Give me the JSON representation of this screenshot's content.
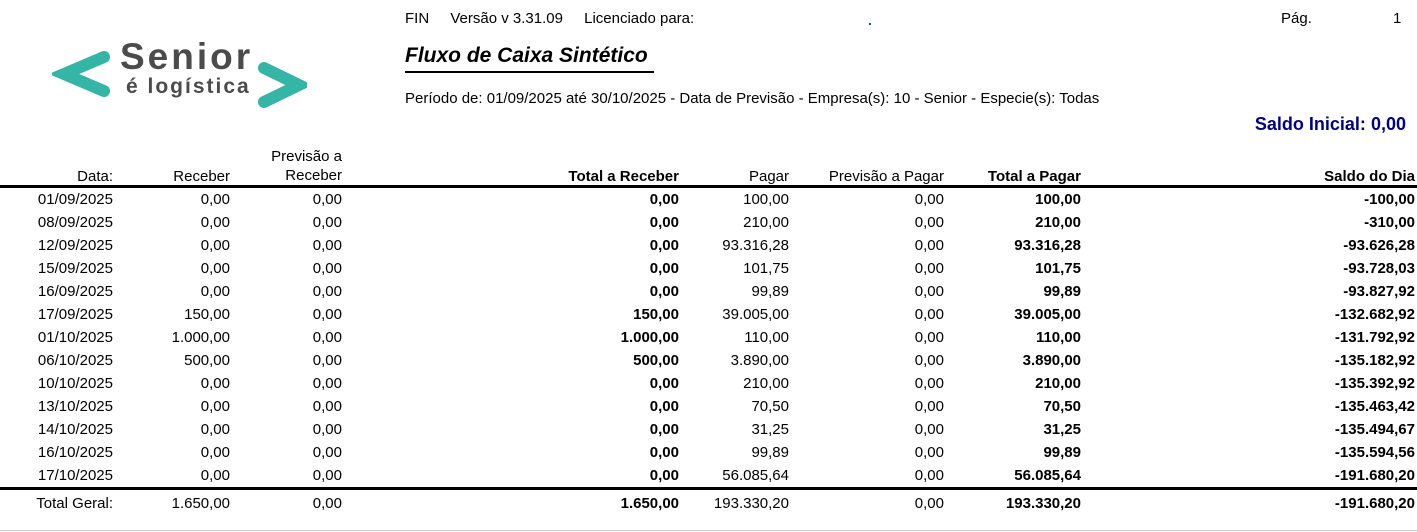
{
  "header": {
    "logo": {
      "brand": "Senior",
      "tagline": "é logística"
    },
    "app_line": {
      "product": "FIN",
      "version": "Versão v 3.31.09",
      "licensed_label": "Licenciado para:",
      "licensed_value": ".",
      "page_label": "Pág.",
      "page_number": "1"
    },
    "title": "Fluxo de Caixa Sintético",
    "period_line": "Período de: 01/09/2025 até 30/10/2025 - Data de Previsão - Empresa(s): 10 - Senior - Especie(s): Todas",
    "saldo_inicial": {
      "label": "Saldo Inicial:",
      "value": "0,00"
    }
  },
  "colors": {
    "accent_navy": "#00008B",
    "logo_teal": "#35b5a5",
    "logo_gray": "#4b4b4b"
  },
  "table": {
    "col_keys": [
      "data",
      "receber",
      "previsao-a-receber",
      "total-a-receber",
      "pagar",
      "previsao-a-pagar",
      "total-a-pagar",
      "saldo-do-dia"
    ],
    "headers": {
      "data": "Data:",
      "receber": "Receber",
      "previsao_receber_line1": "Previsão a",
      "previsao_receber_line2": "Receber",
      "total_receber": "Total a Receber",
      "pagar": "Pagar",
      "previsao_pagar": "Previsão a Pagar",
      "total_pagar": "Total a Pagar",
      "saldo_dia": "Saldo do Dia"
    },
    "rows": [
      [
        "01/09/2025",
        "0,00",
        "0,00",
        "0,00",
        "100,00",
        "0,00",
        "100,00",
        "-100,00"
      ],
      [
        "08/09/2025",
        "0,00",
        "0,00",
        "0,00",
        "210,00",
        "0,00",
        "210,00",
        "-310,00"
      ],
      [
        "12/09/2025",
        "0,00",
        "0,00",
        "0,00",
        "93.316,28",
        "0,00",
        "93.316,28",
        "-93.626,28"
      ],
      [
        "15/09/2025",
        "0,00",
        "0,00",
        "0,00",
        "101,75",
        "0,00",
        "101,75",
        "-93.728,03"
      ],
      [
        "16/09/2025",
        "0,00",
        "0,00",
        "0,00",
        "99,89",
        "0,00",
        "99,89",
        "-93.827,92"
      ],
      [
        "17/09/2025",
        "150,00",
        "0,00",
        "150,00",
        "39.005,00",
        "0,00",
        "39.005,00",
        "-132.682,92"
      ],
      [
        "01/10/2025",
        "1.000,00",
        "0,00",
        "1.000,00",
        "110,00",
        "0,00",
        "110,00",
        "-131.792,92"
      ],
      [
        "06/10/2025",
        "500,00",
        "0,00",
        "500,00",
        "3.890,00",
        "0,00",
        "3.890,00",
        "-135.182,92"
      ],
      [
        "10/10/2025",
        "0,00",
        "0,00",
        "0,00",
        "210,00",
        "0,00",
        "210,00",
        "-135.392,92"
      ],
      [
        "13/10/2025",
        "0,00",
        "0,00",
        "0,00",
        "70,50",
        "0,00",
        "70,50",
        "-135.463,42"
      ],
      [
        "14/10/2025",
        "0,00",
        "0,00",
        "0,00",
        "31,25",
        "0,00",
        "31,25",
        "-135.494,67"
      ],
      [
        "16/10/2025",
        "0,00",
        "0,00",
        "0,00",
        "99,89",
        "0,00",
        "99,89",
        "-135.594,56"
      ],
      [
        "17/10/2025",
        "0,00",
        "0,00",
        "0,00",
        "56.085,64",
        "0,00",
        "56.085,64",
        "-191.680,20"
      ]
    ],
    "total": [
      "Total Geral:",
      "1.650,00",
      "0,00",
      "1.650,00",
      "193.330,20",
      "0,00",
      "193.330,20",
      "-191.680,20"
    ]
  }
}
